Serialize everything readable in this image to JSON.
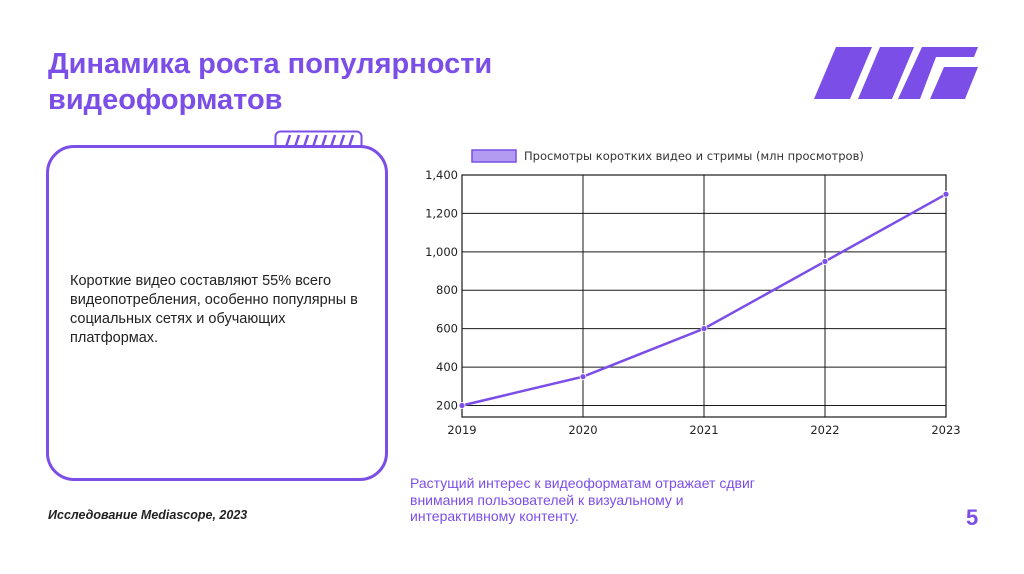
{
  "slide": {
    "title": "Динамика роста популярности видеоформатов",
    "card_text": "Короткие видео составляют 55% всего видеопотребления, особенно популярны в социальных сетях и обучающих платформах.",
    "source": "Исследование Mediascope, 2023",
    "caption": "Растущий интерес к видеоформатам отражает сдвиг внимания пользователей к визуальному и интерактивному контенту.",
    "page_number": "5",
    "accent_color": "#7b4ee8"
  },
  "chart_data": {
    "type": "line",
    "x": [
      "2019",
      "2020",
      "2021",
      "2022",
      "2023"
    ],
    "series": [
      {
        "name": "Просмотры коротких видео и стримы (млн просмотров)",
        "values": [
          200,
          350,
          600,
          950,
          1300
        ],
        "color": "#7b4ee8"
      }
    ],
    "ylim": [
      140,
      1400
    ],
    "yticks": [
      200,
      400,
      600,
      800,
      1000,
      1200,
      1400
    ],
    "ytick_labels": [
      "200",
      "400",
      "600",
      "800",
      "1,000",
      "1,200",
      "1,400"
    ],
    "grid": true,
    "legend": "top"
  }
}
